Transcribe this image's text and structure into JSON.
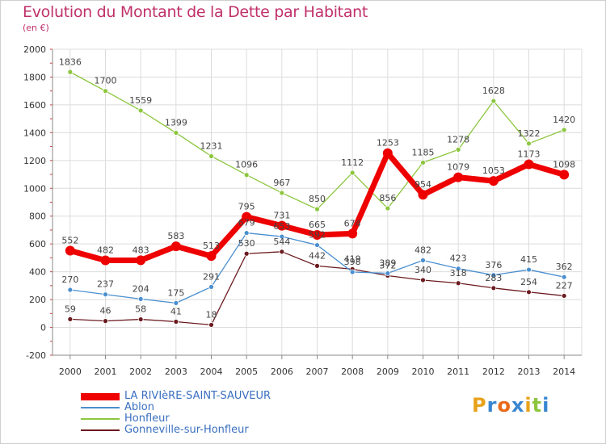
{
  "header": {
    "title": "Evolution du Montant de la Dette par Habitant",
    "subtitle": "(en €)"
  },
  "logo": {
    "text": "Proxiti",
    "letter_colors": [
      "#e8a21a",
      "#3a86d0",
      "#e86a1a",
      "#3a86d0",
      "#e8a21a",
      "#8cc63e",
      "#3a86d0"
    ]
  },
  "chart_data": {
    "type": "line",
    "title": "Evolution du Montant de la Dette par Habitant",
    "subtitle": "(en €)",
    "xlabel": "",
    "ylabel": "",
    "x": [
      "2000",
      "2001",
      "2002",
      "2003",
      "2004",
      "2005",
      "2006",
      "2007",
      "2008",
      "2009",
      "2010",
      "2011",
      "2012",
      "2013",
      "2014"
    ],
    "ylim": [
      -200,
      2000
    ],
    "yticks": [
      -200,
      0,
      200,
      400,
      600,
      800,
      1000,
      1200,
      1400,
      1600,
      1800,
      2000
    ],
    "grid": true,
    "legend_position": "bottom-left",
    "series": [
      {
        "name": "Gonneville-sur-Honfleur",
        "color": "#6b1a1f",
        "width": 1.3,
        "values": [
          59,
          46,
          58,
          41,
          18,
          530,
          544,
          442,
          419,
          372,
          340,
          318,
          283,
          254,
          227
        ]
      },
      {
        "name": "Ablon",
        "color": "#4a8fd0",
        "width": 1.3,
        "values": [
          270,
          237,
          204,
          175,
          291,
          679,
          653,
          592,
          398,
          389,
          482,
          423,
          376,
          415,
          362
        ]
      },
      {
        "name": "Honfleur",
        "color": "#8cc63e",
        "width": 1.3,
        "values": [
          1836,
          1700,
          1559,
          1399,
          1231,
          1096,
          967,
          850,
          1112,
          856,
          1185,
          1278,
          1628,
          1322,
          1420
        ]
      },
      {
        "name": "LA RIVIèRE-SAINT-SAUVEUR",
        "color": "#ee0000",
        "width": 7,
        "values": [
          552,
          482,
          483,
          583,
          513,
          795,
          731,
          665,
          674,
          1253,
          954,
          1079,
          1053,
          1173,
          1098
        ]
      }
    ],
    "legend_order": [
      "LA RIVIèRE-SAINT-SAUVEUR",
      "Ablon",
      "Honfleur",
      "Gonneville-sur-Honfleur"
    ]
  }
}
